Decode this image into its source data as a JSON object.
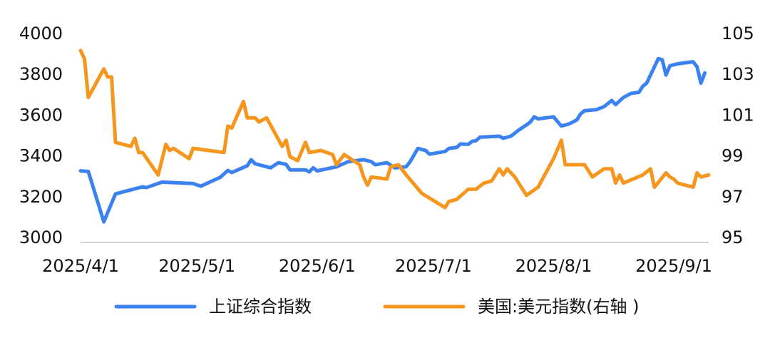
{
  "chart_data": {
    "type": "line",
    "xlim": [
      "2025/4/1",
      "2025/9/10"
    ],
    "xticks": [
      "2025/4/1",
      "2025/5/1",
      "2025/6/1",
      "2025/7/1",
      "2025/8/1",
      "2025/9/1"
    ],
    "ylim": [
      3000,
      4000
    ],
    "yticks": [
      3000,
      3200,
      3400,
      3600,
      3800,
      4000
    ],
    "y2lim": [
      95,
      105
    ],
    "y2ticks": [
      95,
      97,
      99,
      101,
      103,
      105
    ],
    "grid": false,
    "legend": "bottom",
    "series": [
      {
        "name": "上证综合指数",
        "color": "#3b82f0",
        "axis": "y",
        "x": [
          "2025/4/1",
          "2025/4/3",
          "2025/4/7",
          "2025/4/10",
          "2025/4/17",
          "2025/4/18",
          "2025/4/22",
          "2025/4/30",
          "2025/5/2",
          "2025/5/7",
          "2025/5/9",
          "2025/5/10",
          "2025/5/14",
          "2025/5/15",
          "2025/5/16",
          "2025/5/20",
          "2025/5/22",
          "2025/5/24",
          "2025/5/25",
          "2025/5/29",
          "2025/5/30",
          "2025/5/31",
          "2025/6/1",
          "2025/6/6",
          "2025/6/9",
          "2025/6/13",
          "2025/6/15",
          "2025/6/16",
          "2025/6/19",
          "2025/6/21",
          "2025/6/24",
          "2025/6/25",
          "2025/6/27",
          "2025/6/29",
          "2025/6/30",
          "2025/7/4",
          "2025/7/5",
          "2025/7/7",
          "2025/7/8",
          "2025/7/10",
          "2025/7/11",
          "2025/7/12",
          "2025/7/13",
          "2025/7/18",
          "2025/7/19",
          "2025/7/21",
          "2025/7/23",
          "2025/7/25",
          "2025/7/26",
          "2025/7/27",
          "2025/7/28",
          "2025/8/1",
          "2025/8/3",
          "2025/8/5",
          "2025/8/7",
          "2025/8/8",
          "2025/8/9",
          "2025/8/12",
          "2025/8/14",
          "2025/8/16",
          "2025/8/17",
          "2025/8/19",
          "2025/8/21",
          "2025/8/23",
          "2025/8/24",
          "2025/8/25",
          "2025/8/26",
          "2025/8/28",
          "2025/8/29",
          "2025/8/30",
          "2025/8/31",
          "2025/9/2",
          "2025/9/4",
          "2025/9/6",
          "2025/9/7",
          "2025/9/8",
          "2025/9/9"
        ],
        "values": [
          3330,
          3327,
          3080,
          3217,
          3252,
          3248,
          3275,
          3268,
          3255,
          3298,
          3332,
          3322,
          3355,
          3385,
          3365,
          3345,
          3370,
          3362,
          3335,
          3335,
          3325,
          3345,
          3330,
          3350,
          3375,
          3385,
          3375,
          3360,
          3370,
          3345,
          3350,
          3375,
          3440,
          3430,
          3412,
          3425,
          3440,
          3445,
          3462,
          3460,
          3475,
          3478,
          3495,
          3500,
          3490,
          3500,
          3530,
          3555,
          3570,
          3595,
          3585,
          3595,
          3550,
          3560,
          3580,
          3610,
          3625,
          3630,
          3645,
          3675,
          3655,
          3690,
          3710,
          3715,
          3745,
          3760,
          3800,
          3880,
          3875,
          3800,
          3845,
          3855,
          3860,
          3865,
          3840,
          3760,
          3810
        ]
      },
      {
        "name": "美国:美元指数(右轴 )",
        "color": "#f5961e",
        "axis": "y2",
        "x": [
          "2025/4/1",
          "2025/4/2",
          "2025/4/3",
          "2025/4/7",
          "2025/4/8",
          "2025/4/9",
          "2025/4/10",
          "2025/4/14",
          "2025/4/15",
          "2025/4/16",
          "2025/4/17",
          "2025/4/21",
          "2025/4/23",
          "2025/4/24",
          "2025/4/25",
          "2025/4/29",
          "2025/4/30",
          "2025/5/8",
          "2025/5/9",
          "2025/5/10",
          "2025/5/13",
          "2025/5/14",
          "2025/5/16",
          "2025/5/17",
          "2025/5/19",
          "2025/5/23",
          "2025/5/24",
          "2025/5/25",
          "2025/5/27",
          "2025/5/29",
          "2025/5/30",
          "2025/6/2",
          "2025/6/5",
          "2025/6/6",
          "2025/6/8",
          "2025/6/12",
          "2025/6/13",
          "2025/6/14",
          "2025/6/15",
          "2025/6/19",
          "2025/6/20",
          "2025/6/22",
          "2025/6/24",
          "2025/6/28",
          "2025/7/4",
          "2025/7/5",
          "2025/7/7",
          "2025/7/10",
          "2025/7/12",
          "2025/7/14",
          "2025/7/16",
          "2025/7/18",
          "2025/7/19",
          "2025/7/20",
          "2025/7/22",
          "2025/7/25",
          "2025/7/28",
          "2025/8/1",
          "2025/8/3",
          "2025/8/4",
          "2025/8/9",
          "2025/8/11",
          "2025/8/14",
          "2025/8/16",
          "2025/8/17",
          "2025/8/18",
          "2025/8/19",
          "2025/8/24",
          "2025/8/26",
          "2025/8/27",
          "2025/8/30",
          "2025/8/31",
          "2025/9/1",
          "2025/9/2",
          "2025/9/6",
          "2025/9/7",
          "2025/9/8",
          "2025/9/10"
        ],
        "values": [
          104.2,
          103.8,
          101.9,
          103.3,
          102.9,
          102.9,
          99.7,
          99.5,
          99.9,
          99.2,
          99.2,
          98.1,
          99.6,
          99.3,
          99.4,
          98.9,
          99.4,
          99.2,
          100.5,
          100.4,
          101.7,
          100.9,
          100.9,
          100.7,
          100.9,
          99.5,
          99.8,
          99.0,
          98.8,
          99.7,
          99.2,
          99.3,
          99.1,
          98.6,
          99.1,
          98.6,
          98.0,
          97.6,
          98.0,
          97.9,
          98.5,
          98.6,
          98.1,
          97.2,
          96.5,
          96.8,
          96.9,
          97.4,
          97.4,
          97.7,
          97.8,
          98.4,
          98.1,
          98.4,
          98.0,
          97.1,
          97.5,
          98.9,
          99.8,
          98.6,
          98.6,
          98.0,
          98.4,
          98.4,
          97.7,
          98.1,
          97.7,
          98.1,
          98.4,
          97.5,
          98.2,
          98.0,
          97.9,
          97.7,
          97.5,
          98.2,
          98.0,
          98.1
        ]
      }
    ]
  }
}
